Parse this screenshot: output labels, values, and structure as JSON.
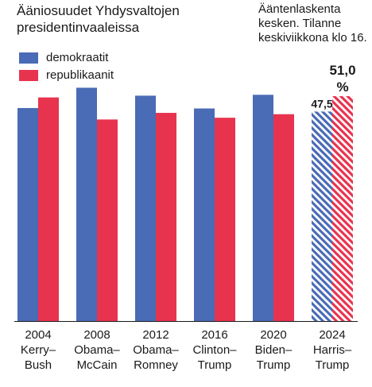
{
  "title": "Ääniosuudet Yhdysvaltojen presidentinvaaleissa",
  "note": "Ääntenlaskenta kesken. Tilanne keskiviikkona klo 16.",
  "colors": {
    "democrat": "#4a6bb5",
    "republican": "#e8334f"
  },
  "chart_data": {
    "type": "bar",
    "title": "Ääniosuudet Yhdysvaltojen presidentinvaaleissa",
    "categories": [
      {
        "year": "2004",
        "candidates": "Kerry–Bush",
        "line1": "Kerry–",
        "line2": "Bush"
      },
      {
        "year": "2008",
        "candidates": "Obama–McCain",
        "line1": "Obama–",
        "line2": "McCain"
      },
      {
        "year": "2012",
        "candidates": "Obama–Romney",
        "line1": "Obama–",
        "line2": "Romney"
      },
      {
        "year": "2016",
        "candidates": "Clinton–Trump",
        "line1": "Clinton–",
        "line2": "Trump"
      },
      {
        "year": "2020",
        "candidates": "Biden–Trump",
        "line1": "Biden–",
        "line2": "Trump"
      },
      {
        "year": "2024",
        "candidates": "Harris–Trump",
        "line1": "Harris–",
        "line2": "Trump"
      }
    ],
    "series": [
      {
        "name": "demokraatit",
        "values": [
          48.3,
          52.9,
          51.1,
          48.2,
          51.3,
          47.5
        ]
      },
      {
        "name": "republikaanit",
        "values": [
          50.7,
          45.7,
          47.2,
          46.1,
          46.9,
          51.0
        ]
      }
    ],
    "data_labels": {
      "democrat_2024": "47,5",
      "republican_2024": "51,0",
      "unit": "%"
    },
    "hatched_category": "2024",
    "ylim": [
      0,
      55
    ],
    "grid": false,
    "legend": "top-left"
  }
}
